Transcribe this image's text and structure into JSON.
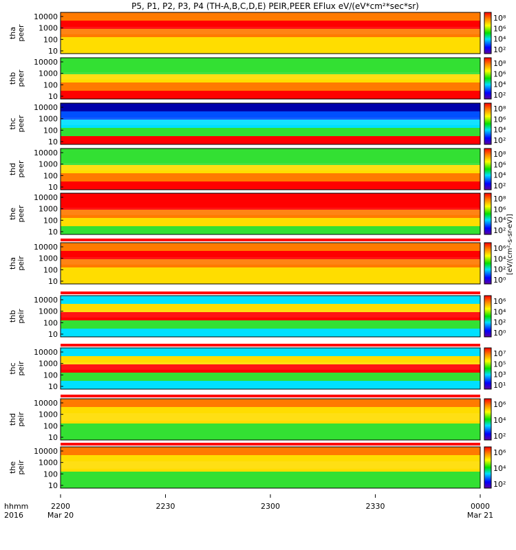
{
  "title": "P5, P1, P2, P3, P4 (TH-A,B,C,D,E) PEIR,PEER EFlux eV/(eV*cm²*sec*sr)",
  "colorbar_label": "[eV/(cm²-s-sr-eV)]",
  "colors": {
    "red": "#ff0000",
    "orange": "#ff7a00",
    "yellow": "#ffdd00",
    "green": "#33e033",
    "cyan": "#00e0ff",
    "blue": "#0050ff",
    "navy": "#0000aa",
    "black": "#000000"
  },
  "chart_data": {
    "type": "heatmap",
    "time_axis": {
      "ticks": [
        "2200",
        "2230",
        "2300",
        "2330",
        "0000"
      ],
      "dates": [
        "Mar 20",
        "",
        "",
        "",
        "Mar 21"
      ],
      "row_labels": [
        "hhmm",
        "2016"
      ]
    },
    "y_axis": {
      "scale": "log",
      "ticks": [
        "10000",
        "1000",
        "100",
        "10"
      ]
    },
    "panels": [
      {
        "probe": "tha",
        "species": "peer",
        "colorbar_ticks": [
          "10⁸",
          "10⁶",
          "10⁴",
          "10²"
        ],
        "dominant": "orange"
      },
      {
        "probe": "thb",
        "species": "peer",
        "colorbar_ticks": [
          "10⁸",
          "10⁶",
          "10⁴",
          "10²"
        ],
        "dominant": "green"
      },
      {
        "probe": "thc",
        "species": "peer",
        "colorbar_ticks": [
          "10⁸",
          "10⁶",
          "10⁴",
          "10²"
        ],
        "dominant": "blue"
      },
      {
        "probe": "thd",
        "species": "peer",
        "colorbar_ticks": [
          "10⁸",
          "10⁶",
          "10⁴",
          "10²"
        ],
        "dominant": "green"
      },
      {
        "probe": "the",
        "species": "peer",
        "colorbar_ticks": [
          "10⁸",
          "10⁶",
          "10⁴",
          "10²"
        ],
        "dominant": "red"
      },
      {
        "probe": "tha",
        "species": "peir",
        "colorbar_ticks": [
          "10⁶",
          "10⁴",
          "10²",
          "10⁰"
        ],
        "dominant": "orange"
      },
      {
        "probe": "thb",
        "species": "peir",
        "colorbar_ticks": [
          "10⁶",
          "10⁴",
          "10²",
          "10⁰"
        ],
        "dominant": "cyan"
      },
      {
        "probe": "thc",
        "species": "peir",
        "colorbar_ticks": [
          "10⁷",
          "10⁵",
          "10³",
          "10¹"
        ],
        "dominant": "cyan"
      },
      {
        "probe": "thd",
        "species": "peir",
        "colorbar_ticks": [
          "10⁶",
          "10⁴",
          "10²"
        ],
        "dominant": "yellow"
      },
      {
        "probe": "the",
        "species": "peir",
        "colorbar_ticks": [
          "10⁶",
          "10⁴",
          "10²"
        ],
        "dominant": "yellow"
      }
    ]
  }
}
